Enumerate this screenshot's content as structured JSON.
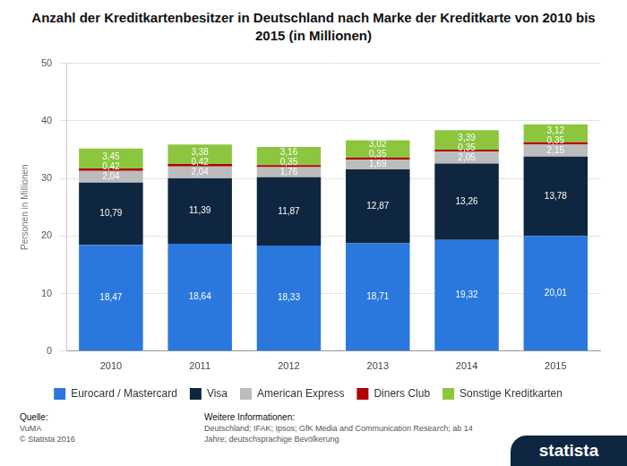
{
  "chart_data": {
    "type": "bar",
    "title": "Anzahl der Kreditkartenbesitzer in Deutschland nach Marke der Kreditkarte von 2010 bis 2015 (in Millionen)",
    "y_label": "Personen in Millionen",
    "categories": [
      "2010",
      "2011",
      "2012",
      "2013",
      "2014",
      "2015"
    ],
    "series": [
      {
        "name": "Eurocard / Mastercard",
        "color": "#2a78dd",
        "values": [
          18.47,
          18.64,
          18.33,
          18.71,
          19.32,
          20.01
        ],
        "value_labels": [
          "18,47",
          "18,64",
          "18,33",
          "18,71",
          "19,32",
          "20,01"
        ]
      },
      {
        "name": "Visa",
        "color": "#0f2641",
        "values": [
          10.79,
          11.39,
          11.87,
          12.87,
          13.26,
          13.78
        ],
        "value_labels": [
          "10,79",
          "11,39",
          "11,87",
          "12,87",
          "13,26",
          "13,78"
        ]
      },
      {
        "name": "American Express",
        "color": "#bcbcbc",
        "values": [
          2.04,
          2.04,
          1.76,
          1.69,
          2.05,
          2.15
        ],
        "value_labels": [
          "2,04",
          "2,04",
          "1,76",
          "1,69",
          "2,05",
          "2,15"
        ]
      },
      {
        "name": "Diners Club",
        "color": "#b00000",
        "values": [
          0.42,
          0.42,
          0.35,
          0.35,
          0.35,
          0.35
        ],
        "value_labels": [
          "0,42",
          "0,42",
          "0,35",
          "0,35",
          "0,35",
          "0,35"
        ]
      },
      {
        "name": "Sonstige Kreditkarten",
        "color": "#8cc63f",
        "values": [
          3.45,
          3.38,
          3.16,
          3.02,
          3.39,
          3.12
        ],
        "value_labels": [
          "3,45",
          "3,38",
          "3,16",
          "3,02",
          "3,39",
          "3,12"
        ]
      }
    ],
    "ylim": [
      0,
      50
    ],
    "yticks": [
      0,
      10,
      20,
      30,
      40,
      50
    ],
    "grid": true,
    "stacked": true,
    "data_labels": true,
    "legend": "bottom"
  },
  "footer": {
    "source_heading": "Quelle:",
    "source": "VuMA",
    "copyright": "© Statista 2016",
    "info_heading": "Weitere Informationen:",
    "info": "Deutschland; IFAK; Ipsos; GfK Media and Communication Research; ab 14 Jahre; deutschsprachige Bevölkerung",
    "logo": "statista"
  }
}
